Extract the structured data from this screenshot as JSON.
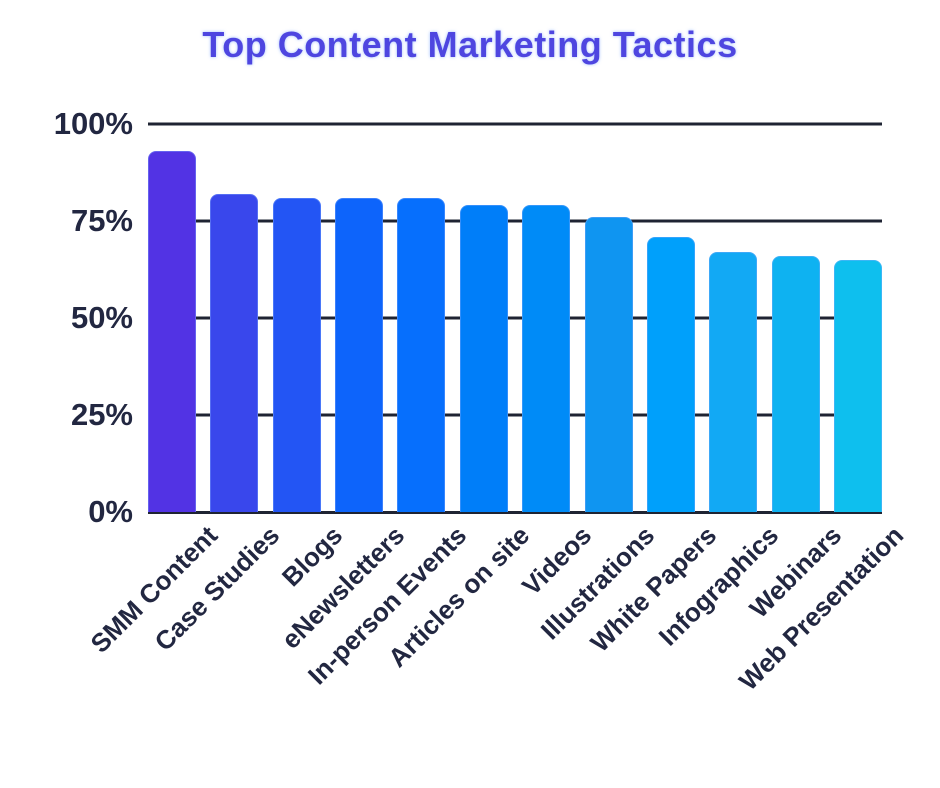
{
  "chart_data": {
    "type": "bar",
    "title": "Top Content Marketing Tactics",
    "categories": [
      "SMM Content",
      "Case Studies",
      "Blogs",
      "eNewsletters",
      "In-person Events",
      "Articles on site",
      "Videos",
      "Illustrations",
      "White Papers",
      "Infographics",
      "Webinars",
      "Web Presentation"
    ],
    "values": [
      93,
      82,
      81,
      81,
      81,
      79,
      79,
      76,
      71,
      67,
      66,
      65
    ],
    "unit": "%",
    "xlabel": "",
    "ylabel": "",
    "ylim": [
      0,
      100
    ],
    "ytick_values": [
      100,
      75,
      50,
      25,
      0
    ],
    "ytick_labels": [
      "100%",
      "75%",
      "50%",
      "25%",
      "0%"
    ],
    "grid": "horizontal-dark",
    "legend": "none",
    "bar_colors": [
      "#5233e4",
      "#3947ec",
      "#2355f4",
      "#0d64fb",
      "#066ffd",
      "#007ef9",
      "#008bf7",
      "#0f95f1",
      "#00a0fb",
      "#12a9f4",
      "#0eb2f1",
      "#0ebfee"
    ],
    "title_color": "#4e46e0",
    "axis_text_color": "#222741",
    "gridline_color": "#1f2433",
    "background_color": "#ffffff"
  }
}
